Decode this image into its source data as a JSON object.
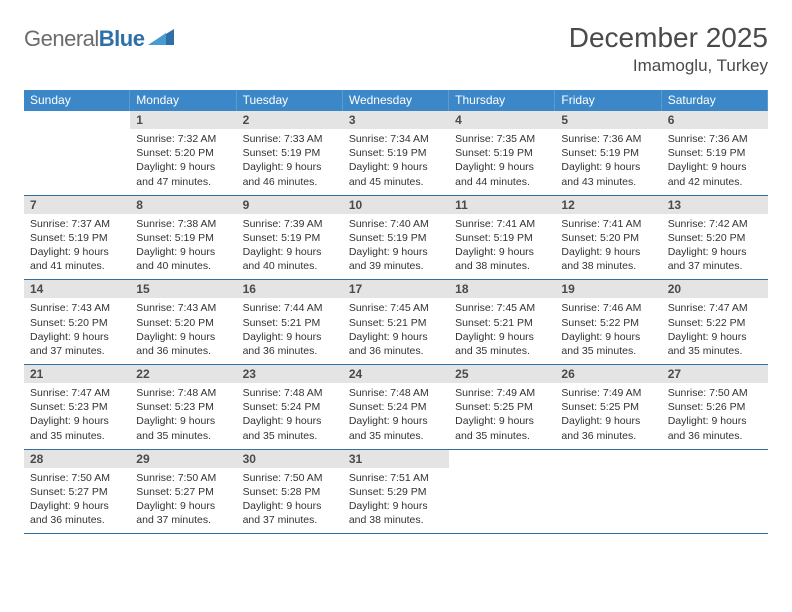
{
  "logo": {
    "part1": "General",
    "part2": "Blue"
  },
  "title": "December 2025",
  "location": "Imamoglu, Turkey",
  "colors": {
    "header_bg": "#3b87c8",
    "border": "#2f6fa8",
    "daynum_bg": "#e4e4e4",
    "text": "#333333",
    "title_text": "#4a4a4a"
  },
  "daysOfWeek": [
    "Sunday",
    "Monday",
    "Tuesday",
    "Wednesday",
    "Thursday",
    "Friday",
    "Saturday"
  ],
  "leadingBlanks": 1,
  "days": [
    {
      "n": 1,
      "sunrise": "7:32 AM",
      "sunset": "5:20 PM",
      "dl": "9 hours and 47 minutes."
    },
    {
      "n": 2,
      "sunrise": "7:33 AM",
      "sunset": "5:19 PM",
      "dl": "9 hours and 46 minutes."
    },
    {
      "n": 3,
      "sunrise": "7:34 AM",
      "sunset": "5:19 PM",
      "dl": "9 hours and 45 minutes."
    },
    {
      "n": 4,
      "sunrise": "7:35 AM",
      "sunset": "5:19 PM",
      "dl": "9 hours and 44 minutes."
    },
    {
      "n": 5,
      "sunrise": "7:36 AM",
      "sunset": "5:19 PM",
      "dl": "9 hours and 43 minutes."
    },
    {
      "n": 6,
      "sunrise": "7:36 AM",
      "sunset": "5:19 PM",
      "dl": "9 hours and 42 minutes."
    },
    {
      "n": 7,
      "sunrise": "7:37 AM",
      "sunset": "5:19 PM",
      "dl": "9 hours and 41 minutes."
    },
    {
      "n": 8,
      "sunrise": "7:38 AM",
      "sunset": "5:19 PM",
      "dl": "9 hours and 40 minutes."
    },
    {
      "n": 9,
      "sunrise": "7:39 AM",
      "sunset": "5:19 PM",
      "dl": "9 hours and 40 minutes."
    },
    {
      "n": 10,
      "sunrise": "7:40 AM",
      "sunset": "5:19 PM",
      "dl": "9 hours and 39 minutes."
    },
    {
      "n": 11,
      "sunrise": "7:41 AM",
      "sunset": "5:19 PM",
      "dl": "9 hours and 38 minutes."
    },
    {
      "n": 12,
      "sunrise": "7:41 AM",
      "sunset": "5:20 PM",
      "dl": "9 hours and 38 minutes."
    },
    {
      "n": 13,
      "sunrise": "7:42 AM",
      "sunset": "5:20 PM",
      "dl": "9 hours and 37 minutes."
    },
    {
      "n": 14,
      "sunrise": "7:43 AM",
      "sunset": "5:20 PM",
      "dl": "9 hours and 37 minutes."
    },
    {
      "n": 15,
      "sunrise": "7:43 AM",
      "sunset": "5:20 PM",
      "dl": "9 hours and 36 minutes."
    },
    {
      "n": 16,
      "sunrise": "7:44 AM",
      "sunset": "5:21 PM",
      "dl": "9 hours and 36 minutes."
    },
    {
      "n": 17,
      "sunrise": "7:45 AM",
      "sunset": "5:21 PM",
      "dl": "9 hours and 36 minutes."
    },
    {
      "n": 18,
      "sunrise": "7:45 AM",
      "sunset": "5:21 PM",
      "dl": "9 hours and 35 minutes."
    },
    {
      "n": 19,
      "sunrise": "7:46 AM",
      "sunset": "5:22 PM",
      "dl": "9 hours and 35 minutes."
    },
    {
      "n": 20,
      "sunrise": "7:47 AM",
      "sunset": "5:22 PM",
      "dl": "9 hours and 35 minutes."
    },
    {
      "n": 21,
      "sunrise": "7:47 AM",
      "sunset": "5:23 PM",
      "dl": "9 hours and 35 minutes."
    },
    {
      "n": 22,
      "sunrise": "7:48 AM",
      "sunset": "5:23 PM",
      "dl": "9 hours and 35 minutes."
    },
    {
      "n": 23,
      "sunrise": "7:48 AM",
      "sunset": "5:24 PM",
      "dl": "9 hours and 35 minutes."
    },
    {
      "n": 24,
      "sunrise": "7:48 AM",
      "sunset": "5:24 PM",
      "dl": "9 hours and 35 minutes."
    },
    {
      "n": 25,
      "sunrise": "7:49 AM",
      "sunset": "5:25 PM",
      "dl": "9 hours and 35 minutes."
    },
    {
      "n": 26,
      "sunrise": "7:49 AM",
      "sunset": "5:25 PM",
      "dl": "9 hours and 36 minutes."
    },
    {
      "n": 27,
      "sunrise": "7:50 AM",
      "sunset": "5:26 PM",
      "dl": "9 hours and 36 minutes."
    },
    {
      "n": 28,
      "sunrise": "7:50 AM",
      "sunset": "5:27 PM",
      "dl": "9 hours and 36 minutes."
    },
    {
      "n": 29,
      "sunrise": "7:50 AM",
      "sunset": "5:27 PM",
      "dl": "9 hours and 37 minutes."
    },
    {
      "n": 30,
      "sunrise": "7:50 AM",
      "sunset": "5:28 PM",
      "dl": "9 hours and 37 minutes."
    },
    {
      "n": 31,
      "sunrise": "7:51 AM",
      "sunset": "5:29 PM",
      "dl": "9 hours and 38 minutes."
    }
  ],
  "labels": {
    "sunrise": "Sunrise:",
    "sunset": "Sunset:",
    "daylight": "Daylight:"
  }
}
